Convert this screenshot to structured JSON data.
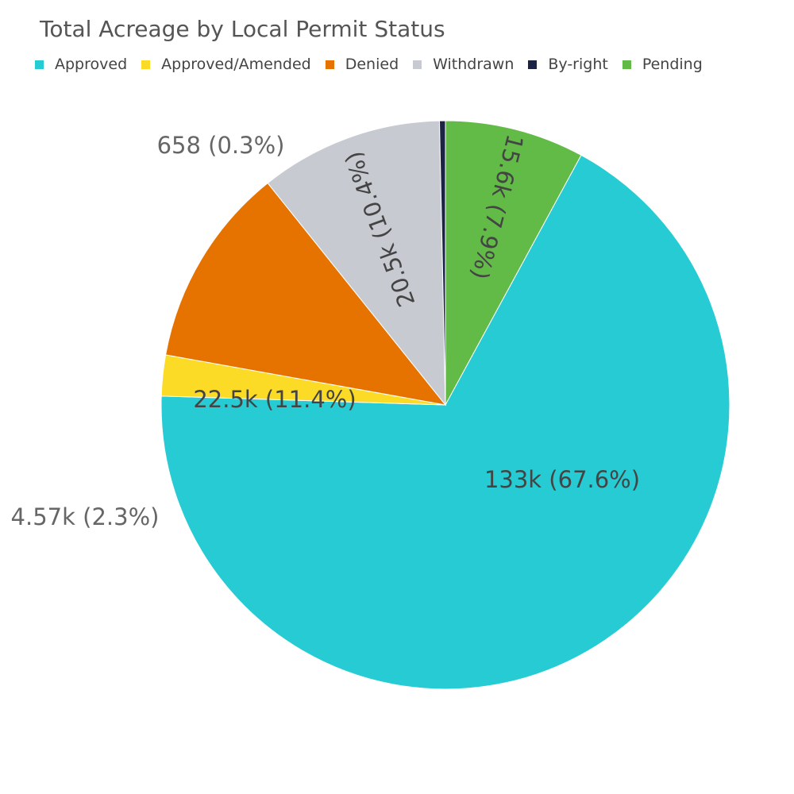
{
  "chart_data": {
    "type": "pie",
    "title": "Total Acreage by Local Permit Status",
    "legend_position": "top",
    "direction": "clockwise",
    "start": "top",
    "slices": [
      {
        "name": "Pending",
        "value": 15600,
        "label": "15.6k (7.9%)",
        "color": "#62bb47"
      },
      {
        "name": "Approved",
        "value": 133000,
        "label": "133k (67.6%)",
        "color": "#26cbd3"
      },
      {
        "name": "Approved/Amended",
        "value": 4570,
        "label": "4.57k (2.3%)",
        "color": "#fcdb26"
      },
      {
        "name": "Denied",
        "value": 22500,
        "label": "22.5k (11.4%)",
        "color": "#e67300"
      },
      {
        "name": "Withdrawn",
        "value": 20500,
        "label": "20.5k (10.4%)",
        "color": "#c8cad1"
      },
      {
        "name": "By-right",
        "value": 658,
        "label": "658 (0.3%)",
        "color": "#1c2446"
      }
    ],
    "legend": [
      {
        "name": "Approved",
        "color": "#26cbd3"
      },
      {
        "name": "Approved/Amended",
        "color": "#fcdb26"
      },
      {
        "name": "Denied",
        "color": "#e67300"
      },
      {
        "name": "Withdrawn",
        "color": "#c8cad1"
      },
      {
        "name": "By-right",
        "color": "#1c2446"
      },
      {
        "name": "Pending",
        "color": "#62bb47"
      }
    ]
  }
}
